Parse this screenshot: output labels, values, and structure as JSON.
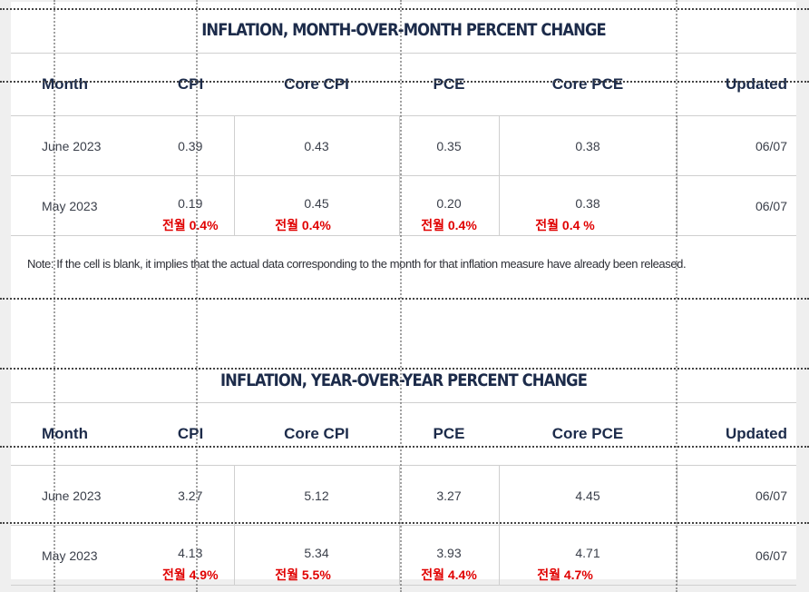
{
  "mom": {
    "title": "INFLATION, MONTH-OVER-MONTH PERCENT CHANGE",
    "headers": [
      "Month",
      "CPI",
      "Core CPI",
      "PCE",
      "Core PCE",
      "Updated"
    ],
    "rows": [
      {
        "month": "June 2023",
        "cpi": "0.39",
        "core_cpi": "0.43",
        "pce": "0.35",
        "core_pce": "0.38",
        "updated": "06/07"
      },
      {
        "month": "May 2023",
        "cpi": "0.19",
        "core_cpi": "0.45",
        "pce": "0.20",
        "core_pce": "0.38",
        "updated": "06/07"
      }
    ],
    "annotations": {
      "cpi": "전월 0.4%",
      "core_cpi": "전월 0.4%",
      "pce": "전월 0.4%",
      "core_pce": "전월 0.4 %"
    }
  },
  "note": "Note: If the cell is blank, it implies that the actual data corresponding to the month for that inflation measure have already been released.",
  "yoy": {
    "title": "INFLATION, YEAR-OVER-YEAR PERCENT CHANGE",
    "headers": [
      "Month",
      "CPI",
      "Core CPI",
      "PCE",
      "Core PCE",
      "Updated"
    ],
    "rows": [
      {
        "month": "June 2023",
        "cpi": "3.27",
        "core_cpi": "5.12",
        "pce": "3.27",
        "core_pce": "4.45",
        "updated": "06/07"
      },
      {
        "month": "May 2023",
        "cpi": "4.13",
        "core_cpi": "5.34",
        "pce": "3.93",
        "core_pce": "4.71",
        "updated": "06/07"
      }
    ],
    "annotations": {
      "cpi": "전월 4.9%",
      "core_cpi": "전월 5.5%",
      "pce": "전월 4.4%",
      "core_pce": "전월 4.7%"
    }
  },
  "colors": {
    "heading": "#1c2b4a",
    "annotation": "#e00000",
    "rule": "#cfcfcf"
  }
}
